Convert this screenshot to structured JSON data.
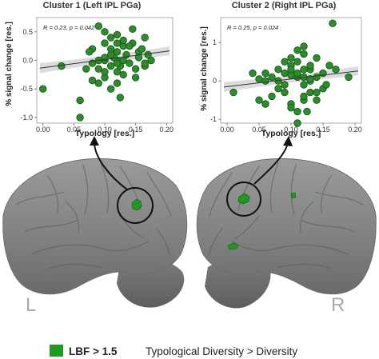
{
  "colors": {
    "point": "#2e8b2e",
    "point_edge": "#145214",
    "activation": "#1f9a1f",
    "fit_line": "#333333",
    "band": "#cccccc",
    "brain": "#8a8a8a",
    "hemi_label": "#a9a9a9"
  },
  "legend": {
    "swatch_label": "LBF > 1.5",
    "contrast": "Typological Diversity > Diversity"
  },
  "brains": [
    {
      "label": "L"
    },
    {
      "label": "R"
    }
  ],
  "chart_data": [
    {
      "type": "scatter",
      "title": "Cluster 1 (Left IPL PGa)",
      "xlabel": "Typology [res.]",
      "ylabel": "% signal change [res.]",
      "annotation": "R = 0.23, p = 0.042",
      "xlim": [
        -0.01,
        0.21
      ],
      "ylim": [
        -1.1,
        0.75
      ],
      "xticks": [
        "0.00",
        "0.05",
        "0.10",
        "0.15",
        "0.20"
      ],
      "yticks": [
        "-1.0",
        "-0.5",
        "0.0",
        "0.5"
      ],
      "fit": {
        "intercept": -0.13,
        "slope": 1.45
      },
      "grid": false,
      "x": [
        0.0,
        0.06,
        0.03,
        0.09,
        0.1,
        0.11,
        0.12,
        0.13,
        0.165,
        0.175,
        0.145,
        0.12,
        0.165,
        0.155,
        0.1,
        0.09,
        0.08,
        0.11,
        0.1,
        0.12,
        0.13,
        0.14,
        0.09,
        0.08,
        0.12,
        0.115,
        0.11,
        0.1,
        0.125,
        0.135,
        0.155,
        0.165,
        0.17,
        0.16,
        0.15,
        0.14,
        0.13,
        0.12,
        0.11,
        0.1,
        0.09,
        0.08,
        0.07,
        0.11,
        0.12,
        0.125,
        0.06,
        0.075,
        0.145,
        0.15,
        0.1,
        0.12,
        0.13
      ],
      "y": [
        -0.5,
        -1.0,
        -0.1,
        0.6,
        0.5,
        0.4,
        0.3,
        0.25,
        0.4,
        0.0,
        0.3,
        0.0,
        -0.1,
        0.15,
        0.3,
        -0.4,
        -0.35,
        -0.5,
        -0.3,
        -0.2,
        -0.25,
        -0.05,
        -0.15,
        0.2,
        0.15,
        0.05,
        0.1,
        0.0,
        -0.1,
        0.1,
        0.05,
        -0.05,
        0.1,
        0.2,
        -0.15,
        0.25,
        0.35,
        0.45,
        -0.1,
        -0.2,
        0.0,
        -0.05,
        -0.15,
        0.2,
        -0.4,
        -0.65,
        -0.7,
        0.15,
        0.55,
        -0.3,
        0.05,
        -0.05,
        0.0
      ]
    },
    {
      "type": "scatter",
      "title": "Cluster 2 (Right IPL PGa)",
      "xlabel": "Typology [res.]",
      "ylabel": "% signal change [res.]",
      "annotation": "R = 0.25, p = 0.024",
      "xlim": [
        -0.01,
        0.21
      ],
      "ylim": [
        -1.1,
        1.65
      ],
      "xticks": [
        "0.00",
        "0.05",
        "0.10",
        "0.15",
        "0.20"
      ],
      "yticks": [
        "-1",
        "0",
        "1"
      ],
      "fit": {
        "intercept": -0.15,
        "slope": 2.0
      },
      "grid": false,
      "x": [
        0.01,
        0.04,
        0.05,
        0.06,
        0.07,
        0.08,
        0.09,
        0.1,
        0.11,
        0.12,
        0.13,
        0.14,
        0.15,
        0.16,
        0.165,
        0.12,
        0.11,
        0.1,
        0.09,
        0.08,
        0.07,
        0.06,
        0.05,
        0.12,
        0.13,
        0.14,
        0.15,
        0.1,
        0.11,
        0.12,
        0.13,
        0.14,
        0.09,
        0.1,
        0.11,
        0.12,
        0.13,
        0.08,
        0.09,
        0.1,
        0.11,
        0.12,
        0.1,
        0.11,
        0.155,
        0.19,
        0.17,
        0.12,
        0.125,
        0.13,
        0.14,
        0.06
      ],
      "y": [
        -0.3,
        0.2,
        -0.5,
        0.0,
        0.1,
        0.3,
        0.2,
        0.4,
        0.5,
        0.7,
        0.3,
        0.6,
        0.2,
        0.4,
        1.5,
        -0.5,
        -0.8,
        -0.6,
        -0.3,
        -0.2,
        -0.4,
        0.2,
        0.05,
        -0.1,
        0.0,
        0.1,
        -0.2,
        0.6,
        0.1,
        0.3,
        -0.3,
        -0.5,
        0.5,
        0.15,
        0.8,
        0.1,
        0.05,
        0.0,
        -0.1,
        0.3,
        0.2,
        -0.4,
        -0.7,
        -1.1,
        -0.1,
        0.1,
        0.3,
        0.9,
        -0.8,
        0.4,
        -0.3,
        -0.6
      ]
    }
  ]
}
